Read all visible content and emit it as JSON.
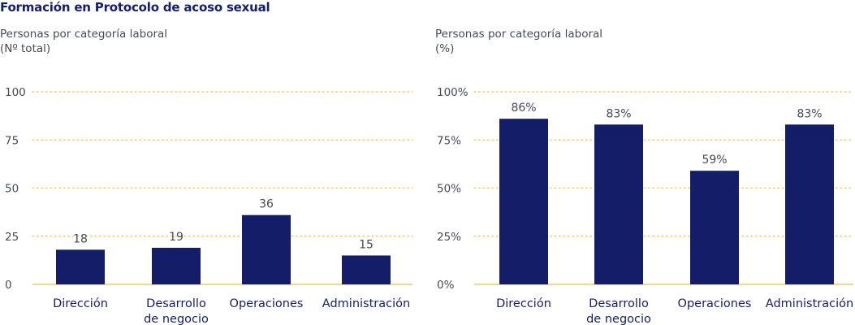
{
  "title": "Formación en Protocolo de acoso sexual",
  "colors": {
    "bar": "#141e68",
    "axis": "#f2c230",
    "grid": "#f2c230",
    "title": "#16206a",
    "text": "#444a58",
    "label": "#141e68"
  },
  "chart_data": [
    {
      "type": "bar",
      "title": "Personas por categoría laboral",
      "subtitle": "(Nº total)",
      "categories": [
        [
          "Dirección"
        ],
        [
          "Desarrollo",
          "de negocio"
        ],
        [
          "Operaciones"
        ],
        [
          "Administración"
        ]
      ],
      "values": [
        18,
        19,
        36,
        15
      ],
      "value_labels": [
        "18",
        "19",
        "36",
        "15"
      ],
      "yticks": [
        "0",
        "25",
        "50",
        "75",
        "100"
      ],
      "ylim": [
        0,
        100
      ],
      "xlabel": "",
      "ylabel": "",
      "grid": true
    },
    {
      "type": "bar",
      "title": "Personas por categoría laboral",
      "subtitle": "(%)",
      "categories": [
        [
          "Dirección"
        ],
        [
          "Desarrollo",
          "de negocio"
        ],
        [
          "Operaciones"
        ],
        [
          "Administración"
        ]
      ],
      "values": [
        86,
        83,
        59,
        83
      ],
      "value_labels": [
        "86%",
        "83%",
        "59%",
        "83%"
      ],
      "yticks": [
        "0%",
        "25%",
        "50%",
        "75%",
        "100%"
      ],
      "ylim": [
        0,
        100
      ],
      "xlabel": "",
      "ylabel": "",
      "grid": true
    }
  ]
}
